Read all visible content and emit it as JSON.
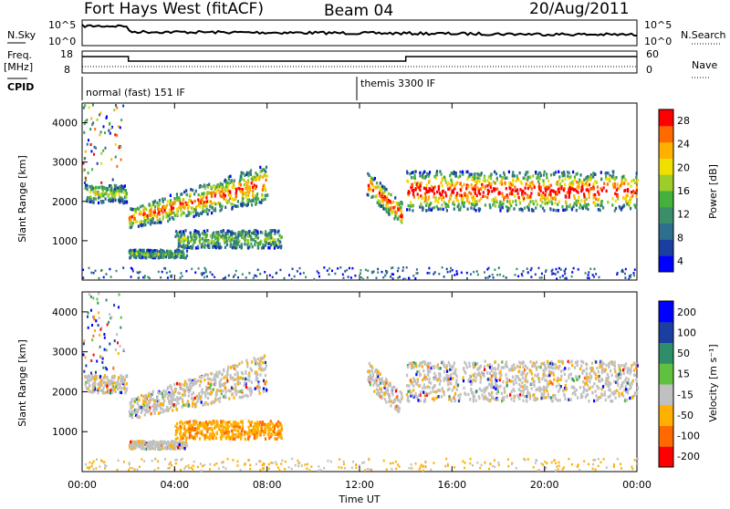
{
  "header": {
    "station": "Fort Hays West (fitACF)",
    "beam": "Beam 04",
    "date": "20/Aug/2011"
  },
  "strip": {
    "nsky_label": "N.Sky",
    "nsky_ticks": [
      "10^5",
      "10^0"
    ],
    "nsearch_label": "N.Search",
    "nsearch_ticks": [
      "10^5",
      "10^0"
    ],
    "freq_label": "Freq.",
    "freq_unit": "[MHz]",
    "freq_ticks": [
      "18",
      "8"
    ],
    "nave_label": "Nave",
    "nave_ticks": [
      "60",
      "0"
    ],
    "cpid_label": "CPID",
    "cpid_modes": [
      "normal (fast) 151 IF",
      "themis 3300 IF"
    ],
    "freq_steps_hours": [
      0,
      2,
      14,
      24
    ],
    "freq_levels": [
      0.8,
      0.55,
      0.8
    ]
  },
  "chart_data": [
    {
      "type": "heatmap",
      "name": "Power",
      "ylabel": "Slant Range [km]",
      "yticks": [
        "4000",
        "3000",
        "2000",
        "1000"
      ],
      "ylim": [
        0,
        4500
      ],
      "xlim_hours": [
        0,
        24
      ],
      "colorbar": {
        "label": "Power [dB]",
        "ticks": [
          "28",
          "24",
          "20",
          "16",
          "12",
          "8",
          "4"
        ],
        "colors": [
          "#0000ff",
          "#1a3fa0",
          "#2e6e8e",
          "#3a8f6a",
          "#46b03c",
          "#9ccd2a",
          "#f0e000",
          "#ffb000",
          "#ff6a00",
          "#ff0000"
        ]
      },
      "features": [
        {
          "desc_hours": [
            0.1,
            1.9
          ],
          "range_km": [
            2000,
            2450
          ],
          "level": 0.45
        },
        {
          "desc_hours": [
            2.0,
            8.0
          ],
          "range_km": [
            1300,
            2800
          ],
          "level": 0.75,
          "slope": "rising"
        },
        {
          "desc_hours": [
            4.0,
            8.6
          ],
          "range_km": [
            850,
            1300
          ],
          "level": 0.35
        },
        {
          "desc_hours": [
            2.0,
            4.5
          ],
          "range_km": [
            600,
            800
          ],
          "level": 0.3
        },
        {
          "desc_hours": [
            12.3,
            13.8
          ],
          "range_km": [
            1400,
            2800
          ],
          "level": 0.85,
          "slope": "falling"
        },
        {
          "desc_hours": [
            14.0,
            24.0
          ],
          "range_km": [
            1800,
            2800
          ],
          "level": 0.9
        }
      ]
    },
    {
      "type": "heatmap",
      "name": "Velocity",
      "ylabel": "Slant Range [km]",
      "yticks": [
        "4000",
        "3000",
        "2000",
        "1000"
      ],
      "ylim": [
        0,
        4500
      ],
      "xlim_hours": [
        0,
        24
      ],
      "colorbar": {
        "label": "Velocity [m s⁻¹]",
        "ticks": [
          "200",
          "100",
          "50",
          "15",
          "-15",
          "-50",
          "-100",
          "-200"
        ],
        "colors": [
          "#ff0000",
          "#ff6a00",
          "#ffb000",
          "#c0c0c0",
          "#60c040",
          "#2e8e6a",
          "#1a3fa0",
          "#0000ff"
        ]
      },
      "xlabel": "Time UT",
      "xticks": [
        "00:00",
        "04:00",
        "08:00",
        "12:00",
        "16:00",
        "20:00",
        "00:00"
      ]
    }
  ]
}
